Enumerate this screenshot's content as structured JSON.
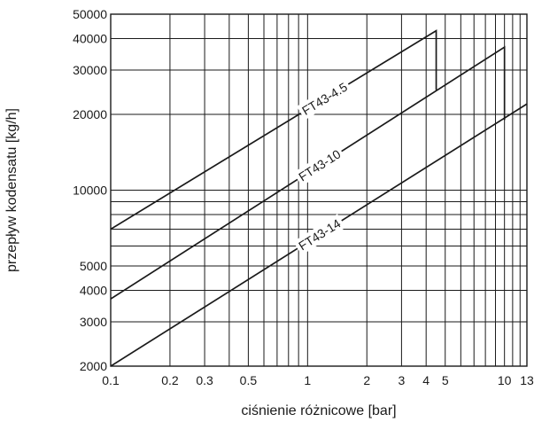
{
  "chart_data": {
    "type": "line",
    "xlabel": "ciśnienie różnicowe [bar]",
    "ylabel": "przepływ kodensatu [kg/h]",
    "xscale": "log",
    "yscale": "log",
    "xlim": [
      0.1,
      13
    ],
    "ylim": [
      2000,
      50000
    ],
    "grid": true,
    "x_gridlines": [
      0.1,
      0.2,
      0.3,
      0.4,
      0.5,
      0.6,
      0.7,
      0.8,
      0.9,
      1,
      2,
      3,
      4,
      5,
      6,
      7,
      8,
      9,
      10,
      11,
      12,
      13
    ],
    "y_gridlines": [
      2000,
      3000,
      4000,
      5000,
      6000,
      7000,
      8000,
      9000,
      10000,
      20000,
      30000,
      40000,
      50000
    ],
    "x_ticks": [
      {
        "value": 0.1,
        "label": "0.1"
      },
      {
        "value": 0.2,
        "label": "0.2"
      },
      {
        "value": 0.3,
        "label": "0.3"
      },
      {
        "value": 0.5,
        "label": "0.5"
      },
      {
        "value": 1,
        "label": "1"
      },
      {
        "value": 2,
        "label": "2"
      },
      {
        "value": 3,
        "label": "3"
      },
      {
        "value": 4,
        "label": "4"
      },
      {
        "value": 5,
        "label": "5"
      },
      {
        "value": 10,
        "label": "10"
      },
      {
        "value": 13,
        "label": "13"
      }
    ],
    "y_ticks": [
      {
        "value": 2000,
        "label": "2000"
      },
      {
        "value": 3000,
        "label": "3000"
      },
      {
        "value": 4000,
        "label": "4000"
      },
      {
        "value": 5000,
        "label": "5000"
      },
      {
        "value": 10000,
        "label": "10000"
      },
      {
        "value": 20000,
        "label": "20000"
      },
      {
        "value": 30000,
        "label": "30000"
      },
      {
        "value": 40000,
        "label": "40000"
      },
      {
        "value": 50000,
        "label": "50000"
      }
    ],
    "series": [
      {
        "name": "FT43-4.5",
        "points": [
          [
            0.1,
            7000
          ],
          [
            4.5,
            43000
          ],
          [
            4.5,
            25000
          ]
        ],
        "label_at": 1.22
      },
      {
        "name": "FT43-10",
        "points": [
          [
            0.1,
            3700
          ],
          [
            10,
            37000
          ],
          [
            10,
            19000
          ]
        ],
        "label_at": 1.15
      },
      {
        "name": "FT43-14",
        "points": [
          [
            0.1,
            2000
          ],
          [
            13,
            22000
          ]
        ],
        "label_at": 1.15
      }
    ]
  }
}
